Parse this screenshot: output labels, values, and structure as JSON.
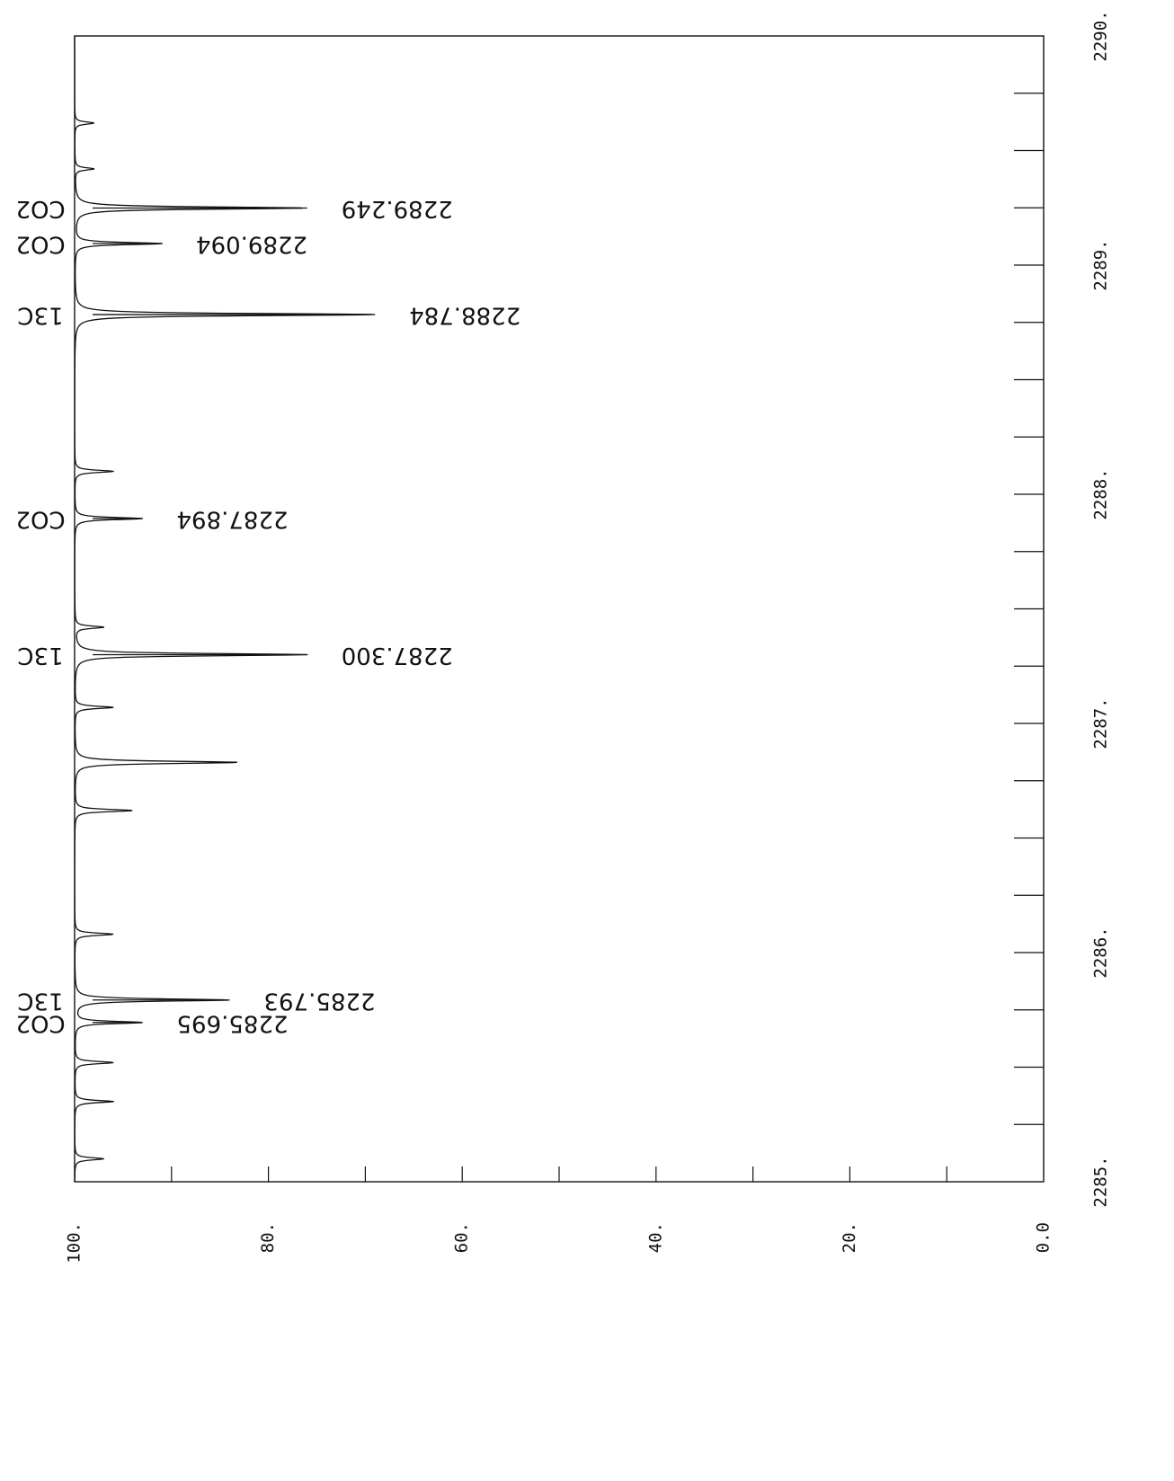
{
  "chart_data": {
    "type": "line",
    "orientation": "rotated-90",
    "x_axis": {
      "label": "",
      "range": [
        2285,
        2290
      ],
      "tick_labels": [
        "2285.",
        "2286.",
        "2287.",
        "2288.",
        "2289.",
        "2290."
      ]
    },
    "y_axis": {
      "label": "",
      "range": [
        0,
        100
      ],
      "tick_labels": [
        "0.0",
        "20.",
        "40.",
        "60.",
        "80.",
        "100."
      ]
    },
    "grid": false,
    "series": [
      {
        "peaks": [
          {
            "x": 2285.1,
            "y": 97
          },
          {
            "x": 2285.35,
            "y": 96
          },
          {
            "x": 2285.52,
            "y": 96
          },
          {
            "x": 2285.695,
            "y": 93
          },
          {
            "x": 2285.793,
            "y": 84
          },
          {
            "x": 2286.08,
            "y": 96
          },
          {
            "x": 2286.62,
            "y": 94
          },
          {
            "x": 2286.83,
            "y": 83
          },
          {
            "x": 2287.07,
            "y": 96
          },
          {
            "x": 2287.3,
            "y": 76
          },
          {
            "x": 2287.42,
            "y": 97
          },
          {
            "x": 2287.894,
            "y": 93
          },
          {
            "x": 2288.1,
            "y": 96
          },
          {
            "x": 2288.784,
            "y": 69
          },
          {
            "x": 2289.094,
            "y": 91
          },
          {
            "x": 2289.249,
            "y": 76
          },
          {
            "x": 2289.42,
            "y": 98
          },
          {
            "x": 2289.62,
            "y": 98
          }
        ]
      }
    ],
    "annotations": [
      {
        "x": 2289.249,
        "value_text": "2289.249",
        "species_text": "CO2"
      },
      {
        "x": 2289.094,
        "value_text": "2289.094",
        "species_text": "CO2"
      },
      {
        "x": 2288.784,
        "value_text": "2288.784",
        "species_text": "13C"
      },
      {
        "x": 2287.894,
        "value_text": "2287.894",
        "species_text": "CO2"
      },
      {
        "x": 2287.3,
        "value_text": "2287.300",
        "species_text": "13C"
      },
      {
        "x": 2285.793,
        "value_text": "2285.793",
        "species_text": "13C"
      },
      {
        "x": 2285.695,
        "value_text": "2285.695",
        "species_text": "CO2"
      }
    ]
  }
}
